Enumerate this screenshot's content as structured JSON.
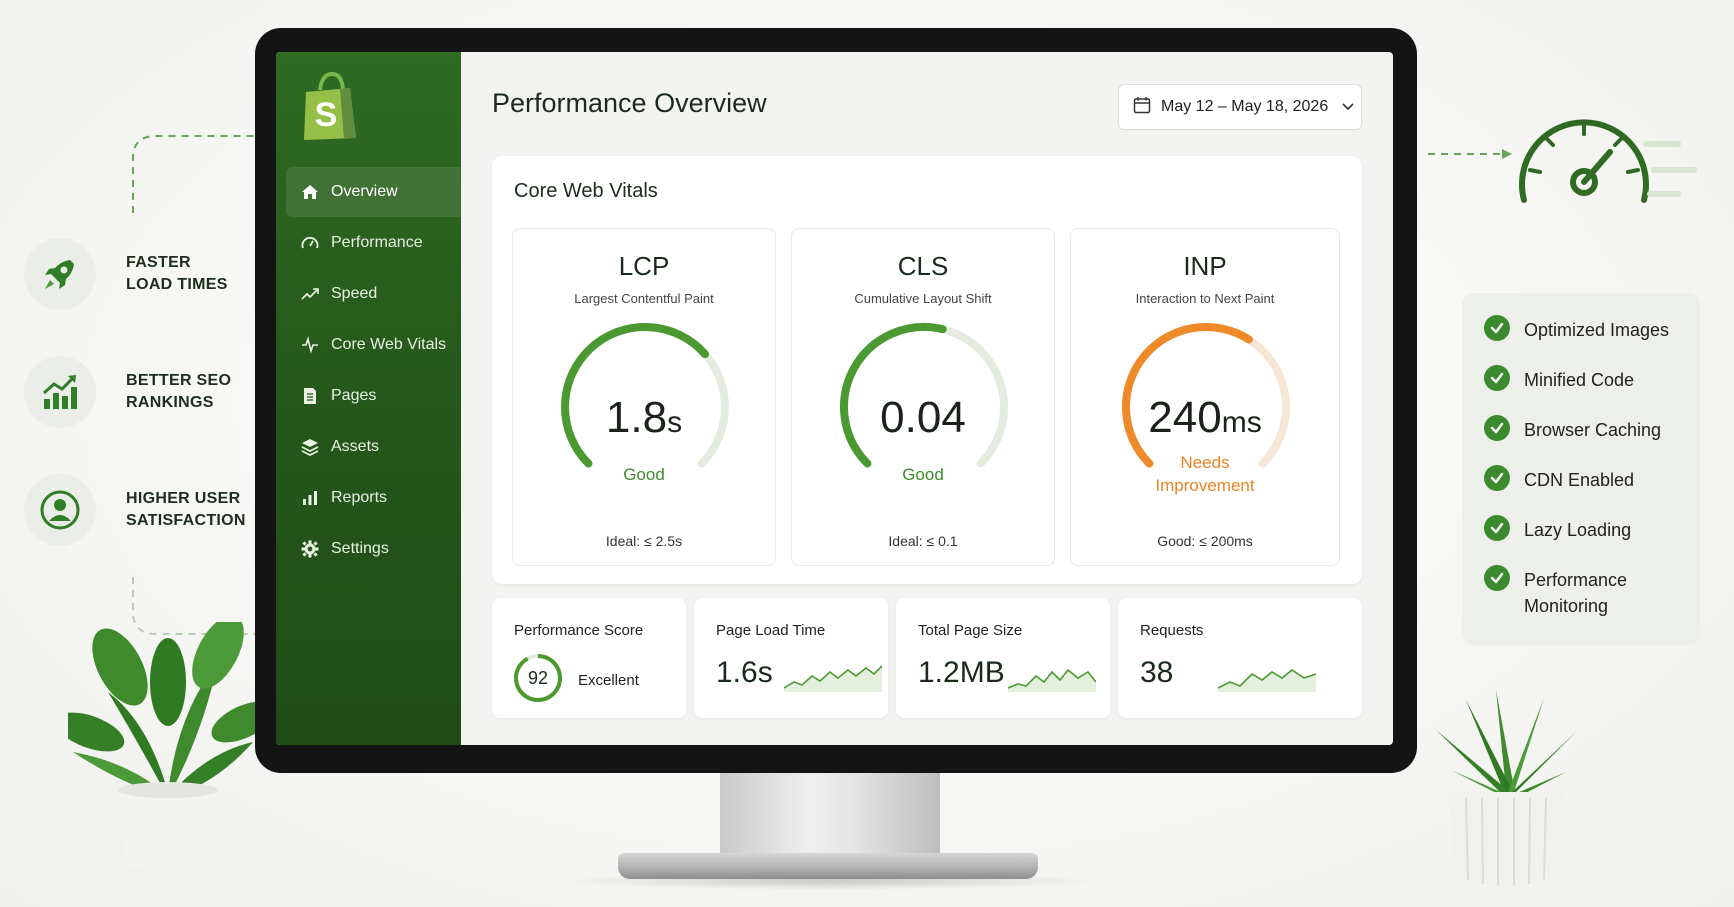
{
  "features": [
    {
      "icon": "rocket-icon",
      "label": "FASTER\nLOAD TIMES"
    },
    {
      "icon": "bar-chart-growth-icon",
      "label": "BETTER SEO\nRANKINGS"
    },
    {
      "icon": "user-icon",
      "label": "HIGHER USER\nSATISFACTION"
    }
  ],
  "checklist": [
    "Optimized Images",
    "Minified Code",
    "Browser Caching",
    "CDN Enabled",
    "Lazy Loading",
    "Performance Monitoring"
  ],
  "sidebar": {
    "logo": "shopify-bag-logo",
    "items": [
      {
        "label": "Overview",
        "icon": "home-icon",
        "active": true
      },
      {
        "label": "Performance",
        "icon": "gauge-icon",
        "active": false
      },
      {
        "label": "Speed",
        "icon": "trend-line-icon",
        "active": false
      },
      {
        "label": "Core Web Vitals",
        "icon": "pulse-icon",
        "active": false
      },
      {
        "label": "Pages",
        "icon": "document-icon",
        "active": false
      },
      {
        "label": "Assets",
        "icon": "layers-icon",
        "active": false
      },
      {
        "label": "Reports",
        "icon": "bar-chart-icon",
        "active": false
      },
      {
        "label": "Settings",
        "icon": "gear-icon",
        "active": false
      }
    ]
  },
  "header": {
    "title": "Performance Overview",
    "date_range": "May 12 – May 18, 2026"
  },
  "vitals": {
    "title": "Core Web Vitals",
    "cards": [
      {
        "abbr": "LCP",
        "name": "Largest Contentful Paint",
        "value": "1.8",
        "unit": "s",
        "status": "Good",
        "threshold": "Ideal: ≤ 2.5s",
        "fill": 0.68,
        "color": "#4a9a31"
      },
      {
        "abbr": "CLS",
        "name": "Cumulative Layout Shift",
        "value": "0.04",
        "unit": "",
        "status": "Good",
        "threshold": "Ideal: ≤ 0.1",
        "fill": 0.55,
        "color": "#4a9a31"
      },
      {
        "abbr": "INP",
        "name": "Interaction to Next Paint",
        "value": "240",
        "unit": "ms",
        "status": "Needs\nImprovement",
        "threshold": "Good: ≤ 200ms",
        "fill": 0.62,
        "color": "#ee8a2a"
      }
    ]
  },
  "metrics": {
    "score": {
      "label": "Performance Score",
      "value": "92",
      "text": "Excellent",
      "fill": 0.92
    },
    "load_time": {
      "label": "Page Load Time",
      "value": "1.6s"
    },
    "page_size": {
      "label": "Total Page Size",
      "value": "1.2MB"
    },
    "requests": {
      "label": "Requests",
      "value": "38"
    }
  },
  "colors": {
    "brand_green": "#2f6b22",
    "good": "#4a9a31",
    "warning": "#ee8a2a"
  }
}
